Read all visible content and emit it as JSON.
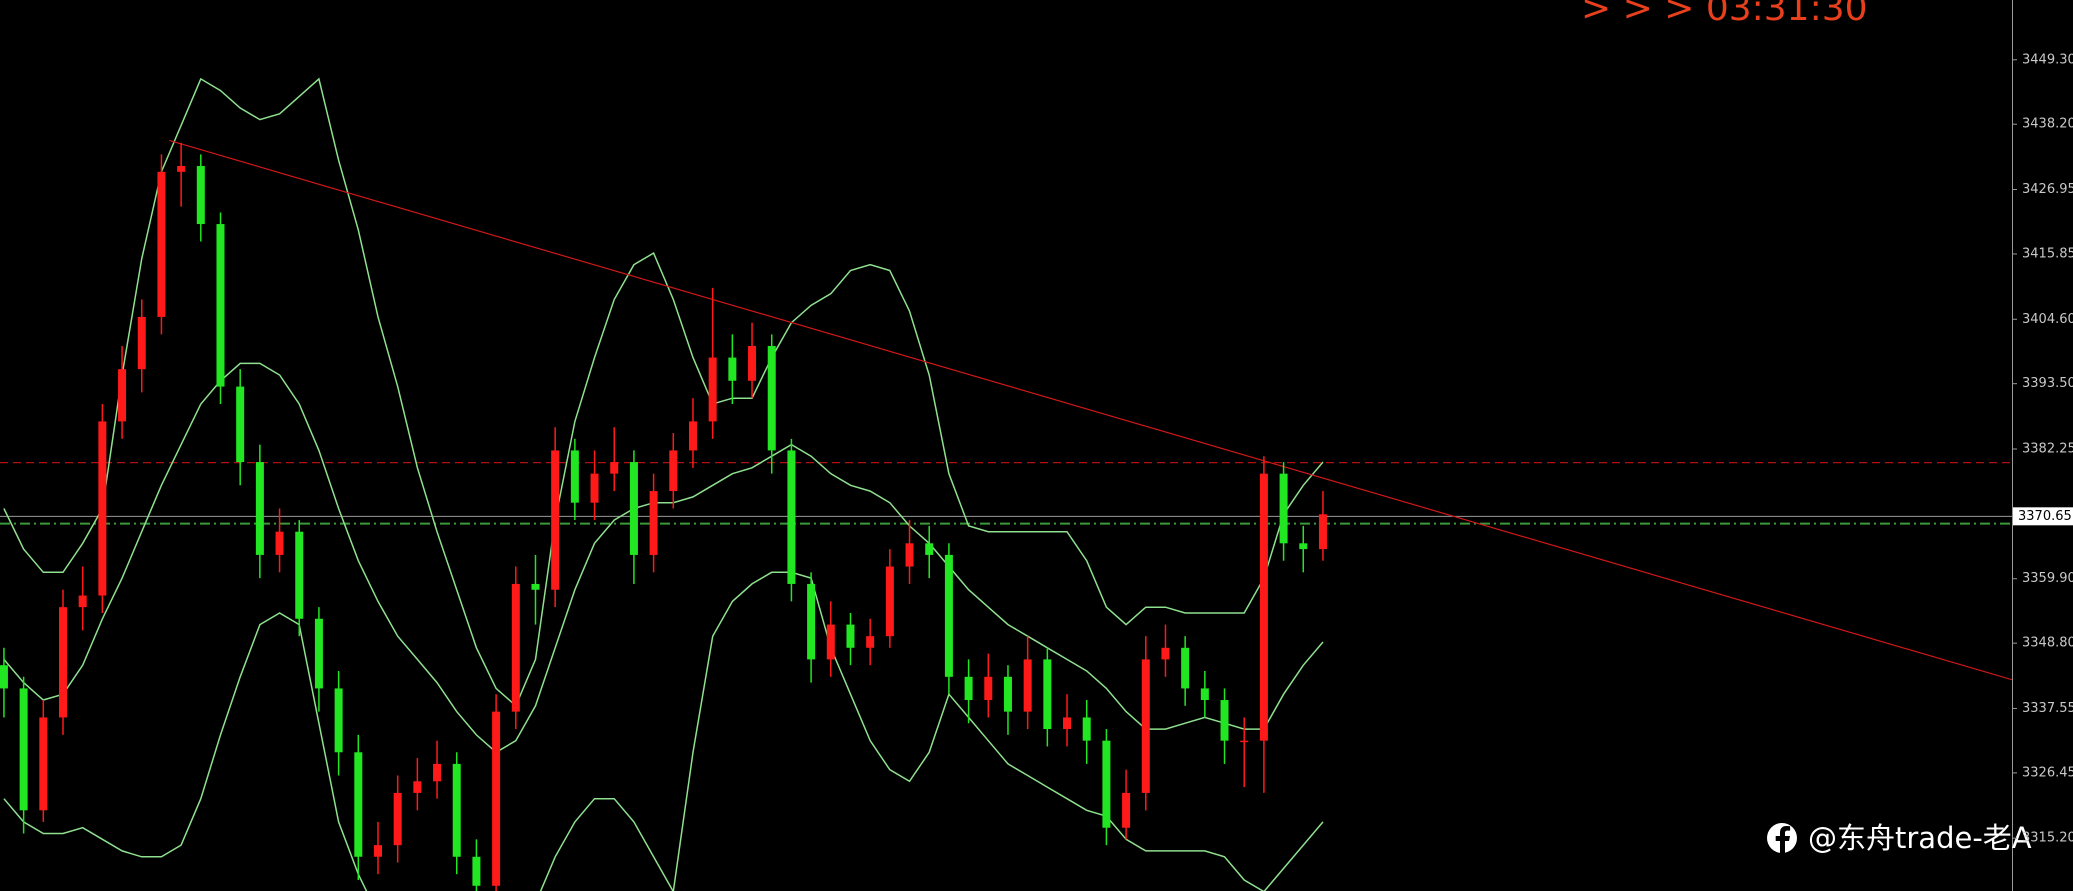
{
  "chart_data": {
    "type": "candlestick",
    "time_label": "> > > 03:31:30",
    "watermark": "@东舟trade-老A",
    "xlim": [
      -0.2,
      102
    ],
    "ylim": [
      3306.1,
      3459.6
    ],
    "yticks": [
      {
        "value": 3449.3,
        "label": "3449.30"
      },
      {
        "value": 3438.2,
        "label": "3438.20"
      },
      {
        "value": 3426.95,
        "label": "3426.95"
      },
      {
        "value": 3415.85,
        "label": "3415.85"
      },
      {
        "value": 3404.6,
        "label": "3404.60"
      },
      {
        "value": 3393.5,
        "label": "3393.50"
      },
      {
        "value": 3382.25,
        "label": "3382.25"
      },
      {
        "value": 3359.9,
        "label": "3359.90"
      },
      {
        "value": 3348.8,
        "label": "3348.80"
      },
      {
        "value": 3337.55,
        "label": "3337.55"
      },
      {
        "value": 3326.45,
        "label": "3326.45"
      },
      {
        "value": 3315.2,
        "label": "3315.20"
      }
    ],
    "last_price": {
      "value": 3370.65,
      "label": "3370.65",
      "color": "#9a9a9a"
    },
    "up_color": "#ff1a1a",
    "down_color": "#22e622",
    "open": [
      3345,
      3341,
      3320,
      3336,
      3355,
      3357,
      3387,
      3396,
      3405,
      3430,
      3431,
      3421,
      3393,
      3380,
      3364,
      3368,
      3353,
      3341,
      3330,
      3312,
      3314,
      3323,
      3325,
      3328,
      3312,
      3307,
      3337,
      3359,
      3358,
      3382,
      3373,
      3378,
      3380,
      3364,
      3375,
      3382,
      3387,
      3398,
      3394,
      3400,
      3382,
      3359,
      3346,
      3352,
      3348,
      3350,
      3362,
      3366,
      3364,
      3343,
      3339,
      3343,
      3337,
      3346,
      3334,
      3336,
      3332,
      3317,
      3323,
      3346,
      3348,
      3341,
      3339,
      3332,
      3332,
      3378,
      3366,
      3365
    ],
    "high": [
      3348,
      3343,
      3339,
      3358,
      3362,
      3390,
      3400,
      3408,
      3433,
      3435,
      3433,
      3423,
      3396,
      3383,
      3372,
      3370,
      3355,
      3344,
      3333,
      3318,
      3326,
      3329,
      3332,
      3330,
      3315,
      3340,
      3362,
      3364,
      3386,
      3384,
      3382,
      3386,
      3382,
      3378,
      3385,
      3391,
      3410,
      3402,
      3404,
      3402,
      3384,
      3361,
      3356,
      3354,
      3353,
      3365,
      3370,
      3369,
      3366,
      3346,
      3347,
      3345,
      3350,
      3348,
      3340,
      3339,
      3334,
      3327,
      3350,
      3352,
      3350,
      3344,
      3341,
      3336,
      3381,
      3380,
      3369,
      3375
    ],
    "low": [
      3336,
      3316,
      3318,
      3333,
      3351,
      3354,
      3384,
      3392,
      3402,
      3424,
      3418,
      3390,
      3376,
      3360,
      3361,
      3350,
      3337,
      3326,
      3308,
      3309,
      3311,
      3320,
      3322,
      3309,
      3304,
      3305,
      3334,
      3352,
      3355,
      3370,
      3370,
      3375,
      3359,
      3361,
      3372,
      3379,
      3384,
      3390,
      3391,
      3378,
      3356,
      3342,
      3343,
      3345,
      3345,
      3348,
      3359,
      3360,
      3340,
      3335,
      3336,
      3333,
      3334,
      3331,
      3331,
      3328,
      3314,
      3315,
      3320,
      3343,
      3338,
      3336,
      3328,
      3324,
      3323,
      3363,
      3361,
      3363
    ],
    "close": [
      3341,
      3320,
      3336,
      3355,
      3357,
      3387,
      3396,
      3405,
      3430,
      3431,
      3421,
      3393,
      3380,
      3364,
      3368,
      3353,
      3341,
      3330,
      3312,
      3314,
      3323,
      3325,
      3328,
      3312,
      3307,
      3337,
      3359,
      3358,
      3382,
      3373,
      3378,
      3380,
      3364,
      3375,
      3382,
      3387,
      3398,
      3394,
      3400,
      3382,
      3359,
      3346,
      3352,
      3348,
      3350,
      3362,
      3366,
      3364,
      3343,
      3339,
      3343,
      3337,
      3346,
      3334,
      3336,
      3332,
      3317,
      3323,
      3346,
      3348,
      3341,
      3339,
      3332,
      3332,
      3378,
      3366,
      3365,
      3371
    ],
    "bands": [
      {
        "color": "#8fe08f",
        "values": [
          3372,
          3365,
          3361,
          3361,
          3366,
          3372,
          3395,
          3415,
          3430,
          3438,
          3446,
          3444,
          3441,
          3439,
          3440,
          3443,
          3446,
          3432,
          3420,
          3405,
          3393,
          3379,
          3368,
          3358,
          3348,
          3341,
          3338,
          3346,
          3370,
          3387,
          3398,
          3408,
          3414,
          3416,
          3408,
          3398,
          3390,
          3391,
          3391,
          3398,
          3404,
          3407,
          3409,
          3413,
          3414,
          3413,
          3406,
          3395,
          3378,
          3369,
          3368,
          3368,
          3368,
          3368,
          3368,
          3363,
          3355,
          3352,
          3355,
          3355,
          3354,
          3354,
          3354,
          3354,
          3360,
          3371,
          3376,
          3380
        ]
      },
      {
        "color": "#8fe08f",
        "values": [
          3346,
          3342,
          3339,
          3340,
          3345,
          3353,
          3360,
          3368,
          3376,
          3383,
          3390,
          3394,
          3397,
          3397,
          3395,
          3390,
          3382,
          3372,
          3363,
          3356,
          3350,
          3346,
          3342,
          3337,
          3333,
          3330,
          3332,
          3338,
          3348,
          3358,
          3366,
          3370,
          3372,
          3373,
          3373,
          3374,
          3376,
          3378,
          3379,
          3381,
          3383,
          3381,
          3378,
          3376,
          3375,
          3373,
          3369,
          3366,
          3362,
          3358,
          3355,
          3352,
          3350,
          3348,
          3346,
          3344,
          3341,
          3337,
          3334,
          3334,
          3335,
          3336,
          3335,
          3334,
          3334,
          3340,
          3345,
          3349
        ]
      },
      {
        "color": "#8fe08f",
        "values": [
          3322,
          3318,
          3316,
          3316,
          3317,
          3315,
          3313,
          3312,
          3312,
          3314,
          3322,
          3333,
          3343,
          3352,
          3354,
          3352,
          3335,
          3318,
          3309,
          3302,
          3300,
          3300,
          3300,
          3300,
          3300,
          3302,
          3303,
          3304,
          3312,
          3318,
          3322,
          3322,
          3318,
          3312,
          3306,
          3330,
          3350,
          3356,
          3359,
          3361,
          3361,
          3360,
          3348,
          3340,
          3332,
          3327,
          3325,
          3330,
          3340,
          3336,
          3332,
          3328,
          3326,
          3324,
          3322,
          3320,
          3319,
          3315,
          3313,
          3313,
          3313,
          3313,
          3312,
          3308,
          3306,
          3310,
          3314,
          3318
        ]
      }
    ],
    "levels": [
      {
        "value": 3379.9,
        "color": "#b01010",
        "style": "dash"
      },
      {
        "value": 3369.4,
        "color": "#3a9a3a",
        "style": "dashdot"
      }
    ],
    "trendline": {
      "x": [
        8.4,
        102
      ],
      "y": [
        3435.4,
        3342.5
      ],
      "color": "#d01818"
    }
  }
}
